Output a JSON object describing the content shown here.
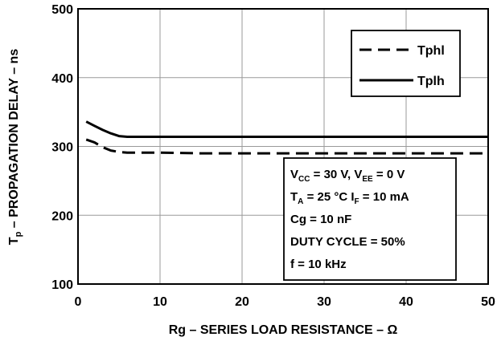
{
  "chart_data": {
    "type": "line",
    "xlabel": "Rg – SERIES LOAD RESISTANCE – Ω",
    "ylabel": {
      "main": "T",
      "sub": "p",
      "rest": " – PROPAGATION DELAY – ns"
    },
    "xlim": [
      0,
      50
    ],
    "ylim": [
      100,
      500
    ],
    "xticks": [
      0,
      10,
      20,
      30,
      40,
      50
    ],
    "yticks": [
      100,
      200,
      300,
      400,
      500
    ],
    "grid": true,
    "legend_position": "top-right",
    "series": [
      {
        "name": "Tphl",
        "style": "dashed",
        "x": [
          1,
          2,
          3,
          4,
          5,
          6,
          8,
          10,
          15,
          20,
          30,
          40,
          50
        ],
        "y": [
          310,
          306,
          299,
          294,
          292,
          291,
          291,
          291,
          290,
          290,
          290,
          290,
          290
        ]
      },
      {
        "name": "Tplh",
        "style": "solid",
        "x": [
          1,
          2,
          3,
          4,
          5,
          6,
          8,
          10,
          20,
          30,
          40,
          50
        ],
        "y": [
          336,
          330,
          324,
          319,
          315,
          314,
          314,
          314,
          314,
          314,
          314,
          314
        ]
      }
    ],
    "conditions": [
      {
        "segments": [
          {
            "t": "V"
          },
          {
            "t": "CC",
            "sub": true
          },
          {
            "t": " = 30 V, V"
          },
          {
            "t": "EE",
            "sub": true
          },
          {
            "t": " = 0 V"
          }
        ]
      },
      {
        "segments": [
          {
            "t": "T"
          },
          {
            "t": "A",
            "sub": true
          },
          {
            "t": " = 25 °C I"
          },
          {
            "t": "F",
            "sub": true
          },
          {
            "t": " = 10 mA"
          }
        ]
      },
      {
        "segments": [
          {
            "t": "Cg = 10 nF"
          }
        ]
      },
      {
        "segments": [
          {
            "t": "DUTY CYCLE = 50%"
          }
        ]
      },
      {
        "segments": [
          {
            "t": "f = 10 kHz"
          }
        ]
      }
    ]
  }
}
